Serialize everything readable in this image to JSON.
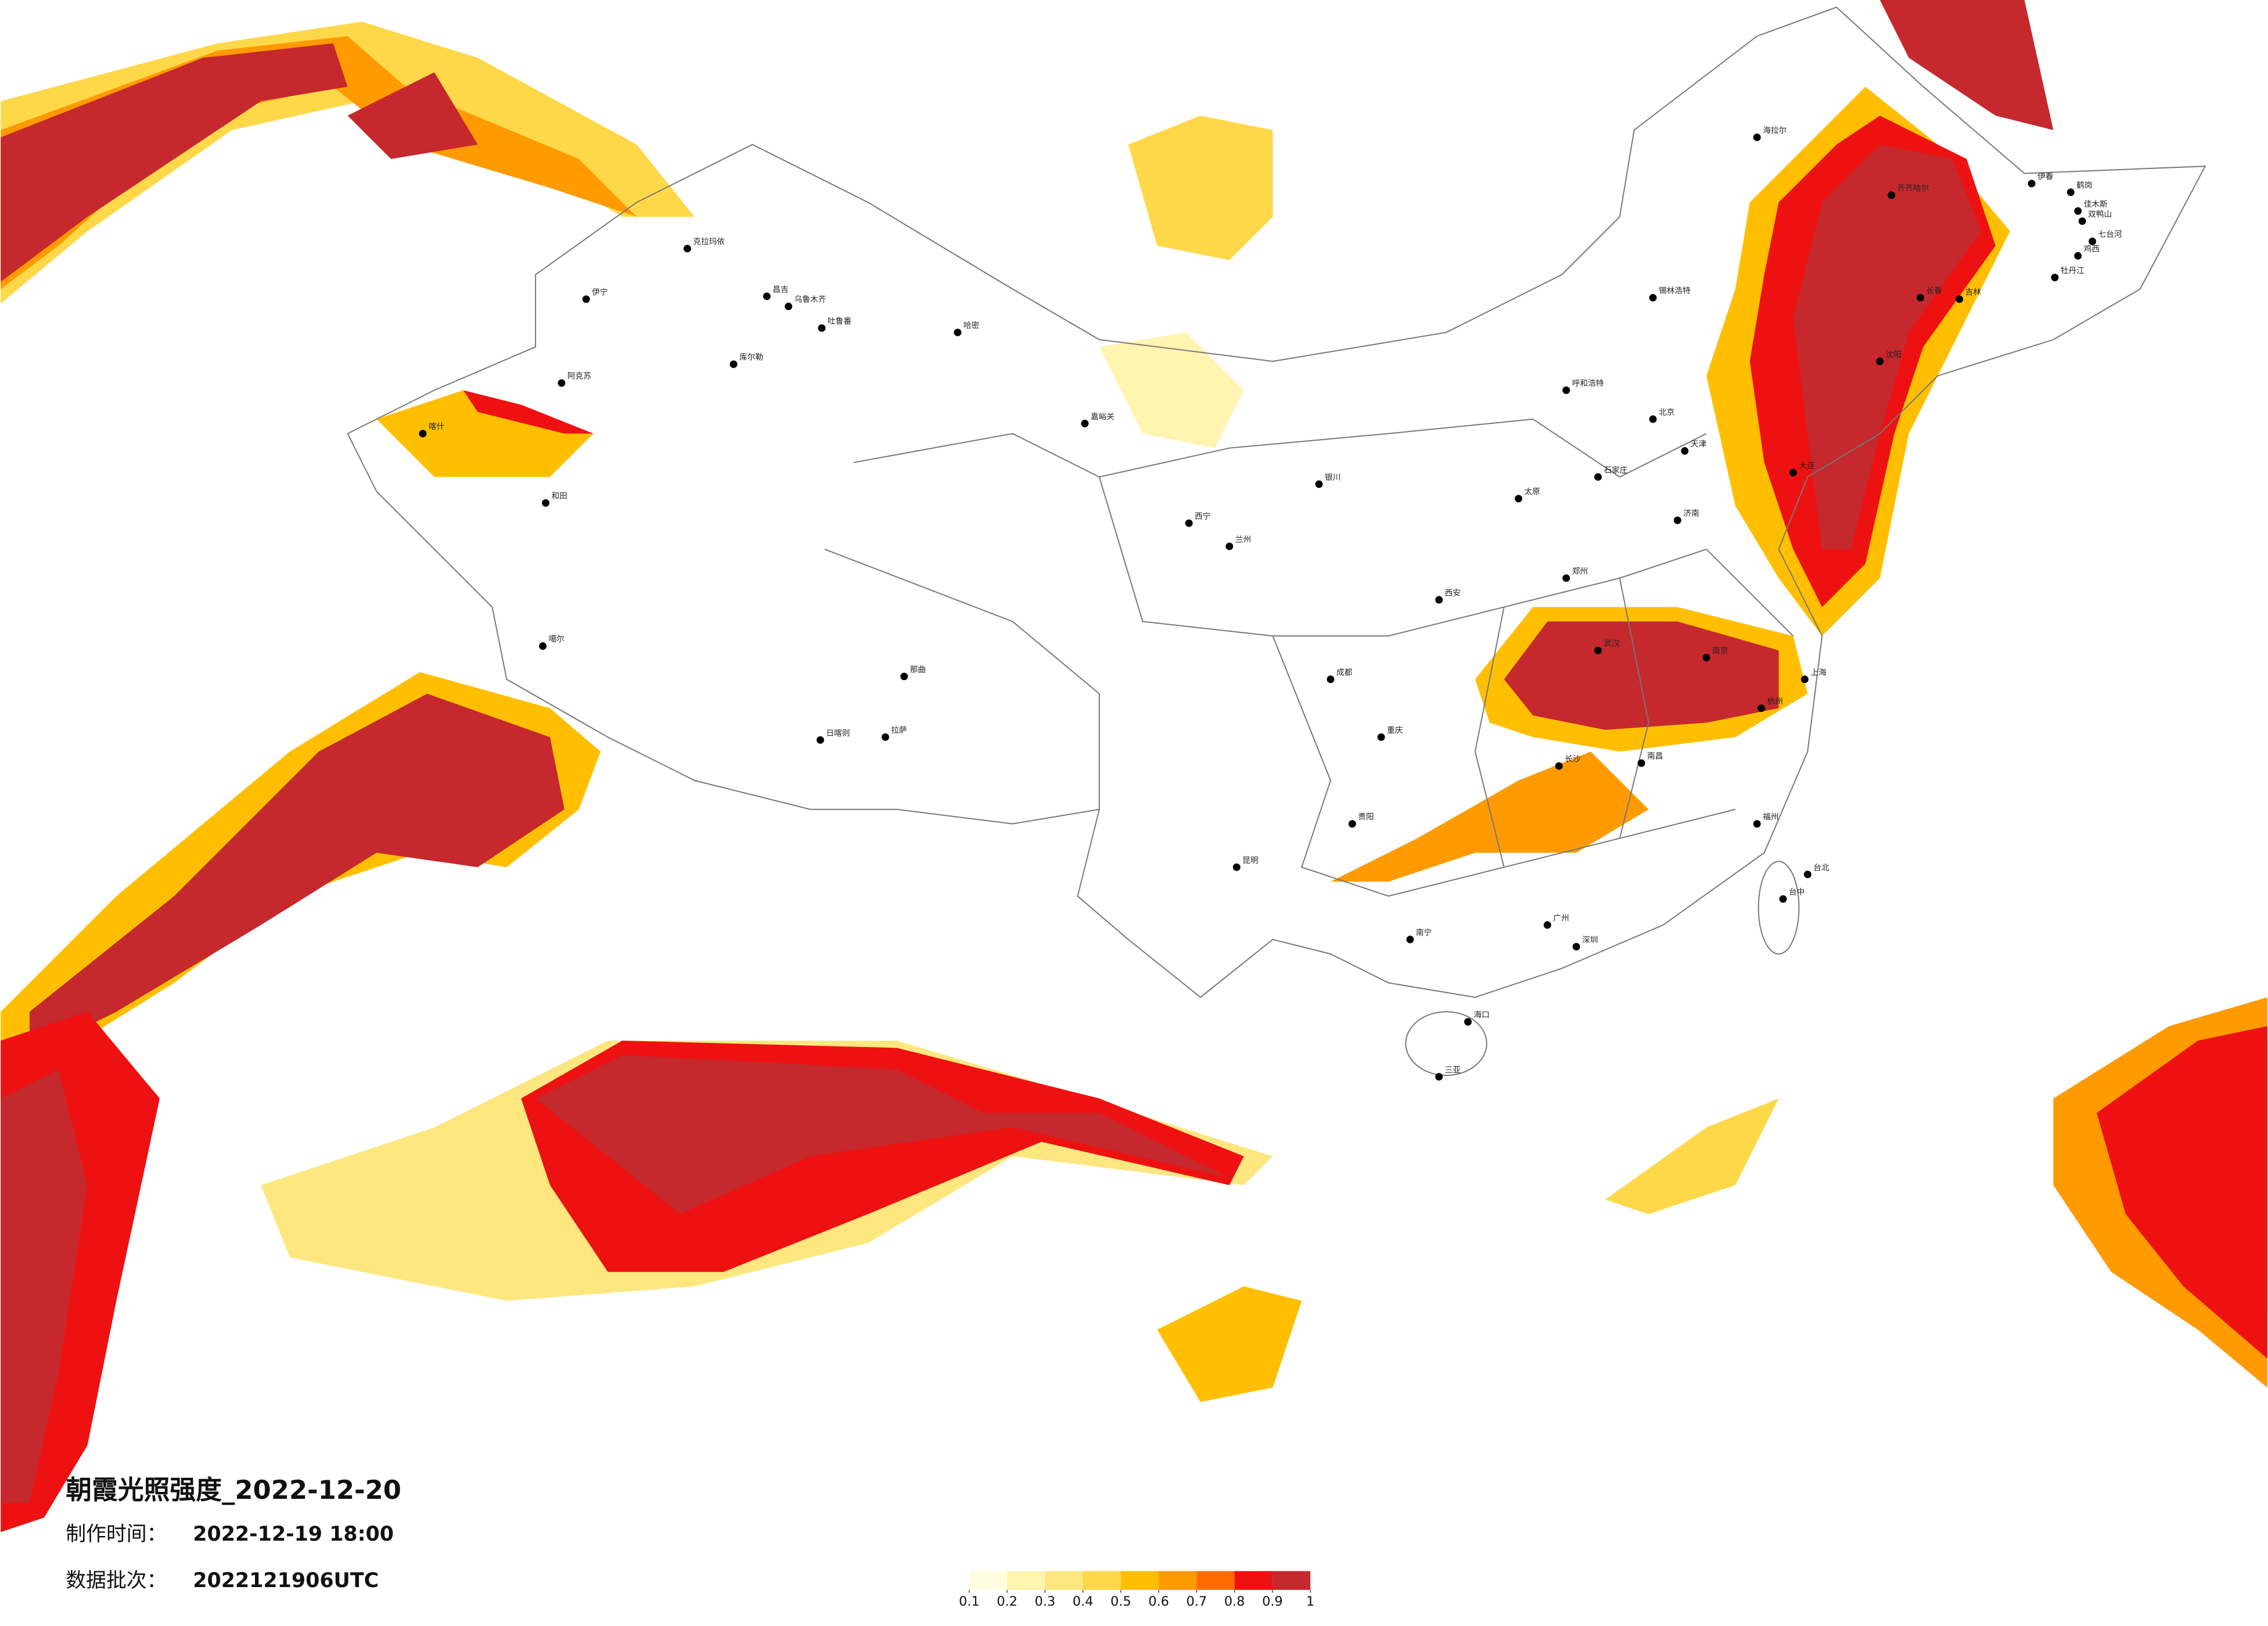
{
  "title": "朝霞光照强度_2022-12-20",
  "production_time": {
    "label": "制作时间：",
    "value": "2022-12-19 18:00"
  },
  "data_batch": {
    "label": "数据批次：",
    "value": "2022121906UTC"
  },
  "legend": {
    "colors": [
      "#fffce0",
      "#fff4b0",
      "#ffe780",
      "#ffd84a",
      "#ffbf00",
      "#ff9a00",
      "#ff6a00",
      "#ee1111",
      "#c5282d"
    ],
    "ticks": [
      0.1,
      0.2,
      0.3,
      0.4,
      0.5,
      0.6,
      0.7,
      0.8,
      0.9,
      1
    ]
  },
  "cities": [
    "海拉尔",
    "齐齐哈尔",
    "伊春",
    "鹤岗",
    "佳木斯",
    "双鸭山",
    "七台河",
    "鸡西",
    "牡丹江",
    "长春",
    "吉林",
    "锡林浩特",
    "克拉玛依",
    "伊宁",
    "昌吉",
    "乌鲁木齐",
    "吐鲁番",
    "哈密",
    "库尔勒",
    "阿克苏",
    "喀什",
    "和田",
    "噶尔",
    "日喀则",
    "拉萨",
    "那曲",
    "嘉峪关",
    "西宁",
    "兰州",
    "银川",
    "呼和浩特",
    "北京",
    "天津",
    "石家庄",
    "太原",
    "济南",
    "郑州",
    "西安",
    "成都",
    "重庆",
    "武汉",
    "长沙",
    "南昌",
    "南京",
    "上海",
    "杭州",
    "福州",
    "台北",
    "台中",
    "广州",
    "深圳",
    "南宁",
    "海口",
    "三亚",
    "昆明",
    "贵阳",
    "沈阳",
    "大连"
  ]
}
